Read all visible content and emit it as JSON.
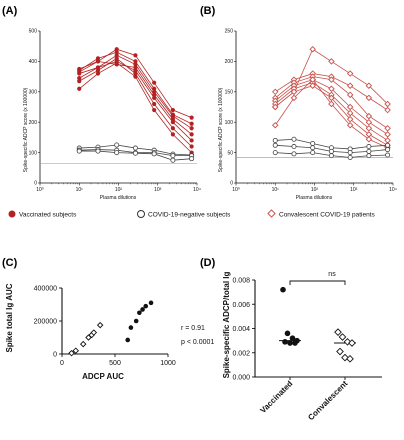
{
  "panels": {
    "A": {
      "letter": "(A)",
      "chart_data": {
        "type": "line",
        "ylabel": "Spike-specific ADCP score (x 100000)",
        "xlabel": "Plasma dilutions",
        "xscale": "log",
        "xlim": [
          1,
          10000
        ],
        "ylim": [
          0,
          500
        ],
        "xticks": [
          "10⁰",
          "10¹",
          "10²",
          "10³",
          "10⁴"
        ],
        "yticks": [
          "0",
          "100",
          "200",
          "300",
          "400",
          "500"
        ],
        "threshold": 65,
        "x": [
          10,
          30,
          90,
          270,
          810,
          2430,
          7290
        ],
        "series": [
          {
            "group": "Vaccinated subjects",
            "values": [
              375,
              400,
              440,
              420,
              330,
              240,
              215
            ]
          },
          {
            "group": "Vaccinated subjects",
            "values": [
              370,
              410,
              430,
              400,
              310,
              225,
              195
            ]
          },
          {
            "group": "Vaccinated subjects",
            "values": [
              360,
              380,
              420,
              390,
              300,
              220,
              180
            ]
          },
          {
            "group": "Vaccinated subjects",
            "values": [
              365,
              400,
              390,
              380,
              290,
              210,
              160
            ]
          },
          {
            "group": "Vaccinated subjects",
            "values": [
              345,
              380,
              400,
              370,
              280,
              200,
              140
            ]
          },
          {
            "group": "Vaccinated subjects",
            "values": [
              335,
              370,
              410,
              360,
              260,
              180,
              120
            ]
          },
          {
            "group": "Vaccinated subjects",
            "values": [
              310,
              360,
              395,
              350,
              240,
              160,
              100
            ]
          },
          {
            "group": "COVID-19-negative subjects",
            "values": [
              115,
              118,
              125,
              115,
              108,
              95,
              92
            ]
          },
          {
            "group": "COVID-19-negative subjects",
            "values": [
              108,
              110,
              108,
              100,
              100,
              90,
              90
            ]
          },
          {
            "group": "COVID-19-negative subjects",
            "values": [
              105,
              105,
              100,
              98,
              96,
              75,
              80
            ]
          }
        ]
      }
    },
    "B": {
      "letter": "(B)",
      "chart_data": {
        "type": "line",
        "ylabel": "Spike-specific ADCP score (x 100000)",
        "xlabel": "Plasma dilutions",
        "xscale": "log",
        "xlim": [
          1,
          10000
        ],
        "ylim": [
          0,
          250
        ],
        "xticks": [
          "10⁰",
          "10¹",
          "10²",
          "10³",
          "10⁴"
        ],
        "yticks": [
          "0",
          "50",
          "100",
          "150",
          "200",
          "250"
        ],
        "threshold": 42,
        "x": [
          10,
          30,
          90,
          270,
          810,
          2430,
          7290
        ],
        "series": [
          {
            "group": "Convalescent COVID-19 patients",
            "values": [
              125,
              150,
              220,
              200,
              180,
              160,
              130
            ]
          },
          {
            "group": "Convalescent COVID-19 patients",
            "values": [
              150,
              170,
              180,
              175,
              160,
              140,
              120
            ]
          },
          {
            "group": "Convalescent COVID-19 patients",
            "values": [
              140,
              165,
              175,
              170,
              145,
              110,
              90
            ]
          },
          {
            "group": "Convalescent COVID-19 patients",
            "values": [
              135,
              160,
              170,
              155,
              125,
              100,
              80
            ]
          },
          {
            "group": "Convalescent COVID-19 patients",
            "values": [
              130,
              155,
              165,
              145,
              115,
              90,
              70
            ]
          },
          {
            "group": "Convalescent COVID-19 patients",
            "values": [
              125,
              150,
              160,
              140,
              105,
              80,
              62
            ]
          },
          {
            "group": "Convalescent COVID-19 patients",
            "values": [
              95,
              140,
              170,
              130,
              95,
              72,
              58
            ]
          },
          {
            "group": "COVID-19-negative subjects",
            "values": [
              70,
              72,
              65,
              58,
              56,
              60,
              62
            ]
          },
          {
            "group": "COVID-19-negative subjects",
            "values": [
              62,
              60,
              58,
              52,
              50,
              52,
              55
            ]
          },
          {
            "group": "COVID-19-negative subjects",
            "values": [
              50,
              48,
              50,
              45,
              42,
              45,
              46
            ]
          }
        ]
      }
    },
    "C": {
      "letter": "(C)",
      "chart_data": {
        "type": "scatter",
        "xlabel": "ADCP AUC",
        "ylabel": "Spike total Ig AUC",
        "xlim": [
          0,
          1000
        ],
        "ylim": [
          0,
          400000
        ],
        "xticks": [
          "0",
          "500",
          "1000"
        ],
        "yticks": [
          "0",
          "200000",
          "400000"
        ],
        "series": [
          {
            "group": "Vaccinated subjects",
            "points": [
              [
                620,
                85000
              ],
              [
                650,
                160000
              ],
              [
                700,
                200000
              ],
              [
                730,
                250000
              ],
              [
                760,
                270000
              ],
              [
                790,
                290000
              ],
              [
                840,
                310000
              ]
            ]
          },
          {
            "group": "Convalescent COVID-19 patients",
            "points": [
              [
                90,
                5000
              ],
              [
                130,
                20000
              ],
              [
                200,
                60000
              ],
              [
                250,
                100000
              ],
              [
                280,
                115000
              ],
              [
                300,
                130000
              ],
              [
                360,
                175000
              ]
            ]
          }
        ],
        "stats": {
          "r": "r = 0.91",
          "p": "p < 0.0001"
        }
      }
    },
    "D": {
      "letter": "(D)",
      "chart_data": {
        "type": "scatter",
        "ylabel": "Spike-specific ADCP/total Ig",
        "categories": [
          "Vaccinated",
          "Convalescent"
        ],
        "ylim": [
          0,
          0.008
        ],
        "yticks": [
          "0.000",
          "0.002",
          "0.004",
          "0.006",
          "0.008"
        ],
        "series": [
          {
            "category": "Vaccinated",
            "values": [
              0.0072,
              0.0036,
              0.0032,
              0.003,
              0.0029,
              0.0028,
              0.0028
            ],
            "median": 0.003
          },
          {
            "category": "Convalescent",
            "values": [
              0.0037,
              0.0033,
              0.0029,
              0.0028,
              0.0021,
              0.0016,
              0.0015
            ],
            "median": 0.0028
          }
        ],
        "significance": "ns"
      }
    }
  },
  "legend": {
    "vaccinated": "Vaccinated subjects",
    "negative": "COVID-19-negative subjects",
    "convalescent": "Convalescent COVID-19 patients"
  },
  "colors": {
    "vaccinated": "#b22222",
    "convalescent": "#c8504a",
    "negative": "#444444",
    "axis": "#111111",
    "threshold": "#999999"
  }
}
